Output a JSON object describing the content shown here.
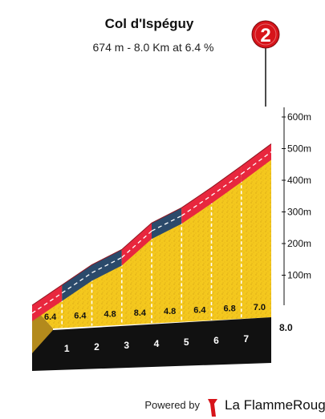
{
  "header": {
    "title": "Col d'Ispéguy",
    "subtitle": "674 m - 8.0 Km at 6.4 %"
  },
  "badge": {
    "category": "2",
    "color": "#d7141a"
  },
  "chart_data": {
    "type": "area",
    "title": "Col d'Ispéguy",
    "subtitle": "674 m - 8.0 Km at 6.4 %",
    "x_unit": "km",
    "y_unit": "m",
    "distance_km": [
      0,
      1,
      2,
      3,
      4,
      5,
      6,
      7,
      8
    ],
    "elevation_m": [
      0,
      64,
      128,
      176,
      260,
      308,
      372,
      440,
      510
    ],
    "segment_gradients": [
      "6.4",
      "6.4",
      "4.8",
      "8.4",
      "4.8",
      "6.4",
      "6.8",
      "7.0"
    ],
    "segment_colors": [
      "red",
      "blue",
      "blue",
      "red",
      "blue",
      "red",
      "red",
      "red"
    ],
    "km_markers": [
      "1",
      "2",
      "3",
      "4",
      "5",
      "6",
      "7"
    ],
    "total_distance_label": "8.0",
    "y_ticks": [
      {
        "value": 100,
        "label": "100m"
      },
      {
        "value": 200,
        "label": "200m"
      },
      {
        "value": 300,
        "label": "300m"
      },
      {
        "value": 400,
        "label": "400m"
      },
      {
        "value": 500,
        "label": "500m"
      },
      {
        "value": 600,
        "label": "600m"
      }
    ],
    "ylim": [
      0,
      674
    ],
    "grid": false,
    "colors": {
      "red": "#e8273e",
      "blue": "#2b4a6b",
      "fill": "#f4c81e",
      "base": "#111111",
      "side": "#b38a1c"
    }
  },
  "footer": {
    "powered_by": "Powered by",
    "brand_name": "La FlammeRouge",
    "brand_color": "#d7141a"
  }
}
